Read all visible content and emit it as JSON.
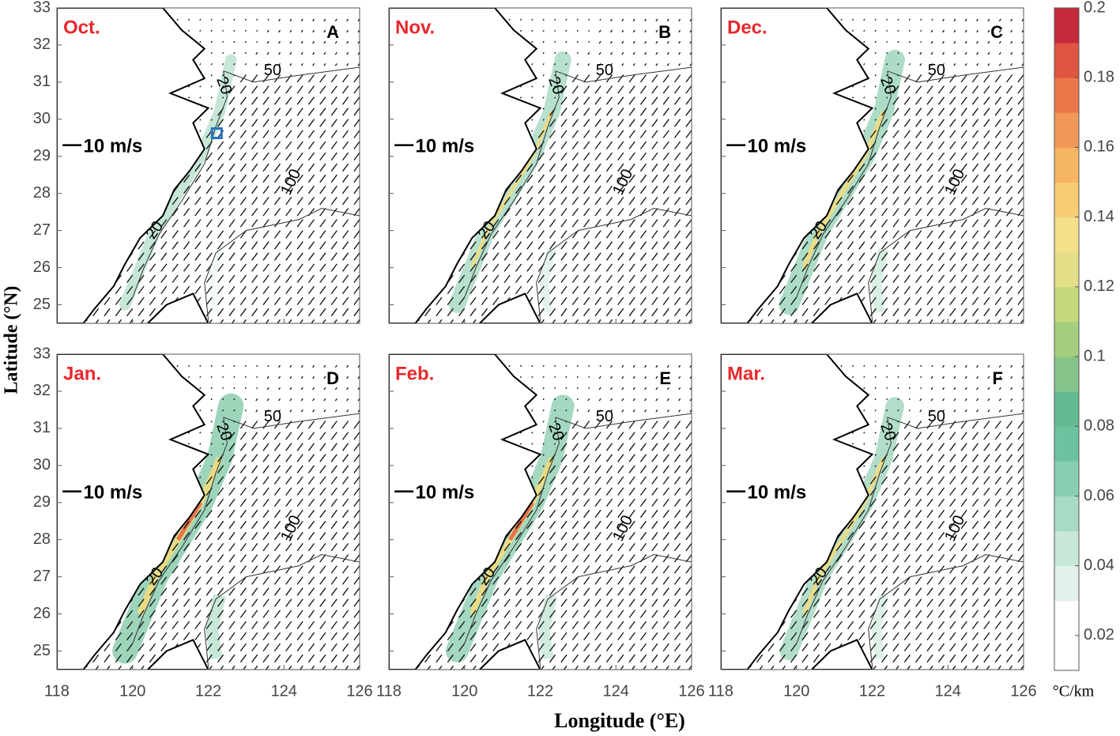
{
  "axes": {
    "xlabel": "Longitude (°E)",
    "ylabel": "Latitude (°N)",
    "xlim": [
      118,
      126
    ],
    "ylim": [
      24.5,
      33
    ],
    "xticks": [
      118,
      120,
      122,
      124,
      126
    ],
    "yticks": [
      25,
      26,
      27,
      28,
      29,
      30,
      31,
      32,
      33
    ]
  },
  "panels": [
    {
      "month": "Oct.",
      "letter": "A"
    },
    {
      "month": "Nov.",
      "letter": "B"
    },
    {
      "month": "Dec.",
      "letter": "C"
    },
    {
      "month": "Jan.",
      "letter": "D"
    },
    {
      "month": "Feb.",
      "letter": "E"
    },
    {
      "month": "Mar.",
      "letter": "F"
    }
  ],
  "scale_label": "10 m/s",
  "contour_labels": [
    "20",
    "50",
    "100"
  ],
  "colorbar": {
    "unit": "°C/km",
    "lim": [
      0.01,
      0.2
    ],
    "ticks": [
      0.02,
      0.04,
      0.06,
      0.08,
      0.1,
      0.12,
      0.14,
      0.16,
      0.18,
      0.2
    ],
    "colors": [
      "#ffffff",
      "#ffffff",
      "#e2f1ea",
      "#c7e7d8",
      "#a8dbc4",
      "#88cfb2",
      "#6dc3a0",
      "#62ba92",
      "#84c48a",
      "#a5ce7f",
      "#c4d87c",
      "#e2df88",
      "#f5e08a",
      "#f7cd74",
      "#f5b563",
      "#f19857",
      "#eb784a",
      "#e05541",
      "#c52a3c"
    ]
  }
}
